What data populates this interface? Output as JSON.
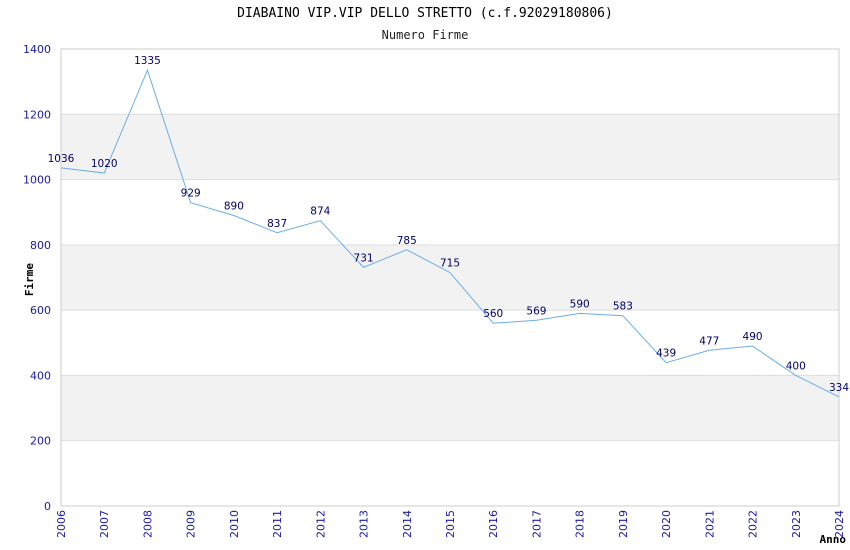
{
  "title": "DIABAINO VIP.VIP DELLO STRETTO (c.f.92029180806)",
  "subtitle": "Numero Firme",
  "colors": {
    "line": "#6aaee8",
    "band": "#f2f2f2",
    "grid": "#dddddd",
    "tick_text": "#1a1aa6",
    "label_text": "#000066",
    "axis_title": "#000000"
  },
  "chart_data": {
    "type": "line",
    "title": "DIABAINO VIP.VIP DELLO STRETTO (c.f.92029180806)",
    "subtitle": "Numero Firme",
    "xlabel": "Anno",
    "ylabel": "Firme",
    "ylim": [
      0,
      1400
    ],
    "yticks": [
      0,
      200,
      400,
      600,
      800,
      1000,
      1200,
      1400
    ],
    "grid": true,
    "x": [
      "2006",
      "2007",
      "2008",
      "2009",
      "2010",
      "2011",
      "2012",
      "2013",
      "2014",
      "2015",
      "2016",
      "2017",
      "2018",
      "2019",
      "2020",
      "2021",
      "2022",
      "2023",
      "2024"
    ],
    "values": [
      1036,
      1020,
      1335,
      929,
      890,
      837,
      874,
      731,
      785,
      715,
      560,
      569,
      590,
      583,
      439,
      477,
      490,
      400,
      334
    ],
    "labels": [
      "1036",
      "1020",
      "1335",
      "929",
      "890",
      "837",
      "874",
      "731",
      "785",
      "715",
      "560",
      "569",
      "590",
      "583",
      "439",
      "477",
      "490",
      "400",
      "334"
    ]
  }
}
